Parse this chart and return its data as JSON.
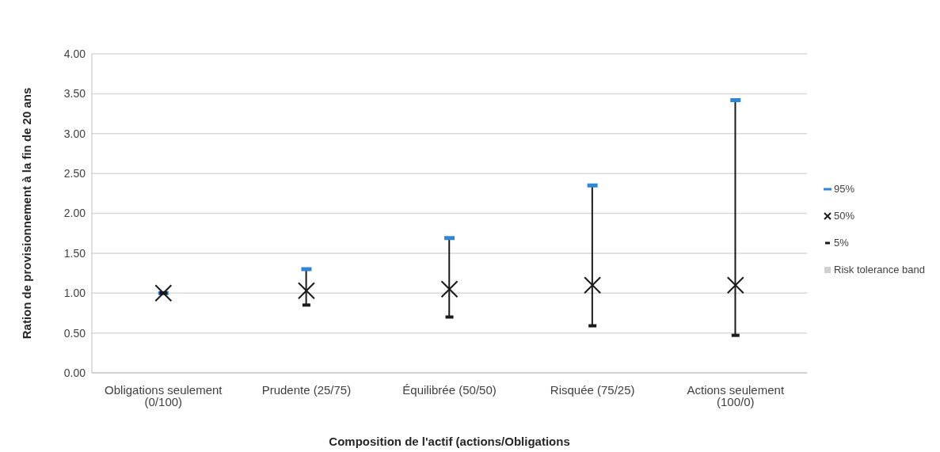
{
  "chart_data": {
    "type": "scatter",
    "xlabel": "Composition de l'actif (actions/Obligations",
    "ylabel": "Ration de provisionnement à la fin de 20 ans",
    "categories": [
      "Obligations seulement (0/100)",
      "Prudente (25/75)",
      "Équilibrée (50/50)",
      "Risquée (75/25)",
      "Actions seulement (100/0)"
    ],
    "series": [
      {
        "name": "95%",
        "color": "#2e86d4",
        "values": [
          1.0,
          1.3,
          1.69,
          2.35,
          3.42
        ]
      },
      {
        "name": "50%",
        "color": "#1a1a1a",
        "marker": "cross",
        "values": [
          1.0,
          1.03,
          1.05,
          1.1,
          1.1
        ]
      },
      {
        "name": "5%",
        "color": "#1a1a1a",
        "values": [
          1.0,
          0.85,
          0.7,
          0.59,
          0.47
        ]
      },
      {
        "name": "Risk tolerance band",
        "type": "area",
        "color": "#d0d0d0",
        "values": [
          null,
          null,
          null,
          null,
          null
        ]
      }
    ],
    "ylim": [
      0,
      4
    ],
    "yticks": [
      {
        "value": 0,
        "label": "0.00"
      },
      {
        "value": 0.5,
        "label": "0.50"
      },
      {
        "value": 1,
        "label": "1.00"
      },
      {
        "value": 1.5,
        "label": "1.50"
      },
      {
        "value": 2,
        "label": "2.00"
      },
      {
        "value": 2.5,
        "label": "2.50"
      },
      {
        "value": 3,
        "label": "3.00"
      },
      {
        "value": 3.5,
        "label": "3.50"
      },
      {
        "value": 4,
        "label": "4.00"
      }
    ],
    "grid": "y",
    "legend": "right"
  }
}
